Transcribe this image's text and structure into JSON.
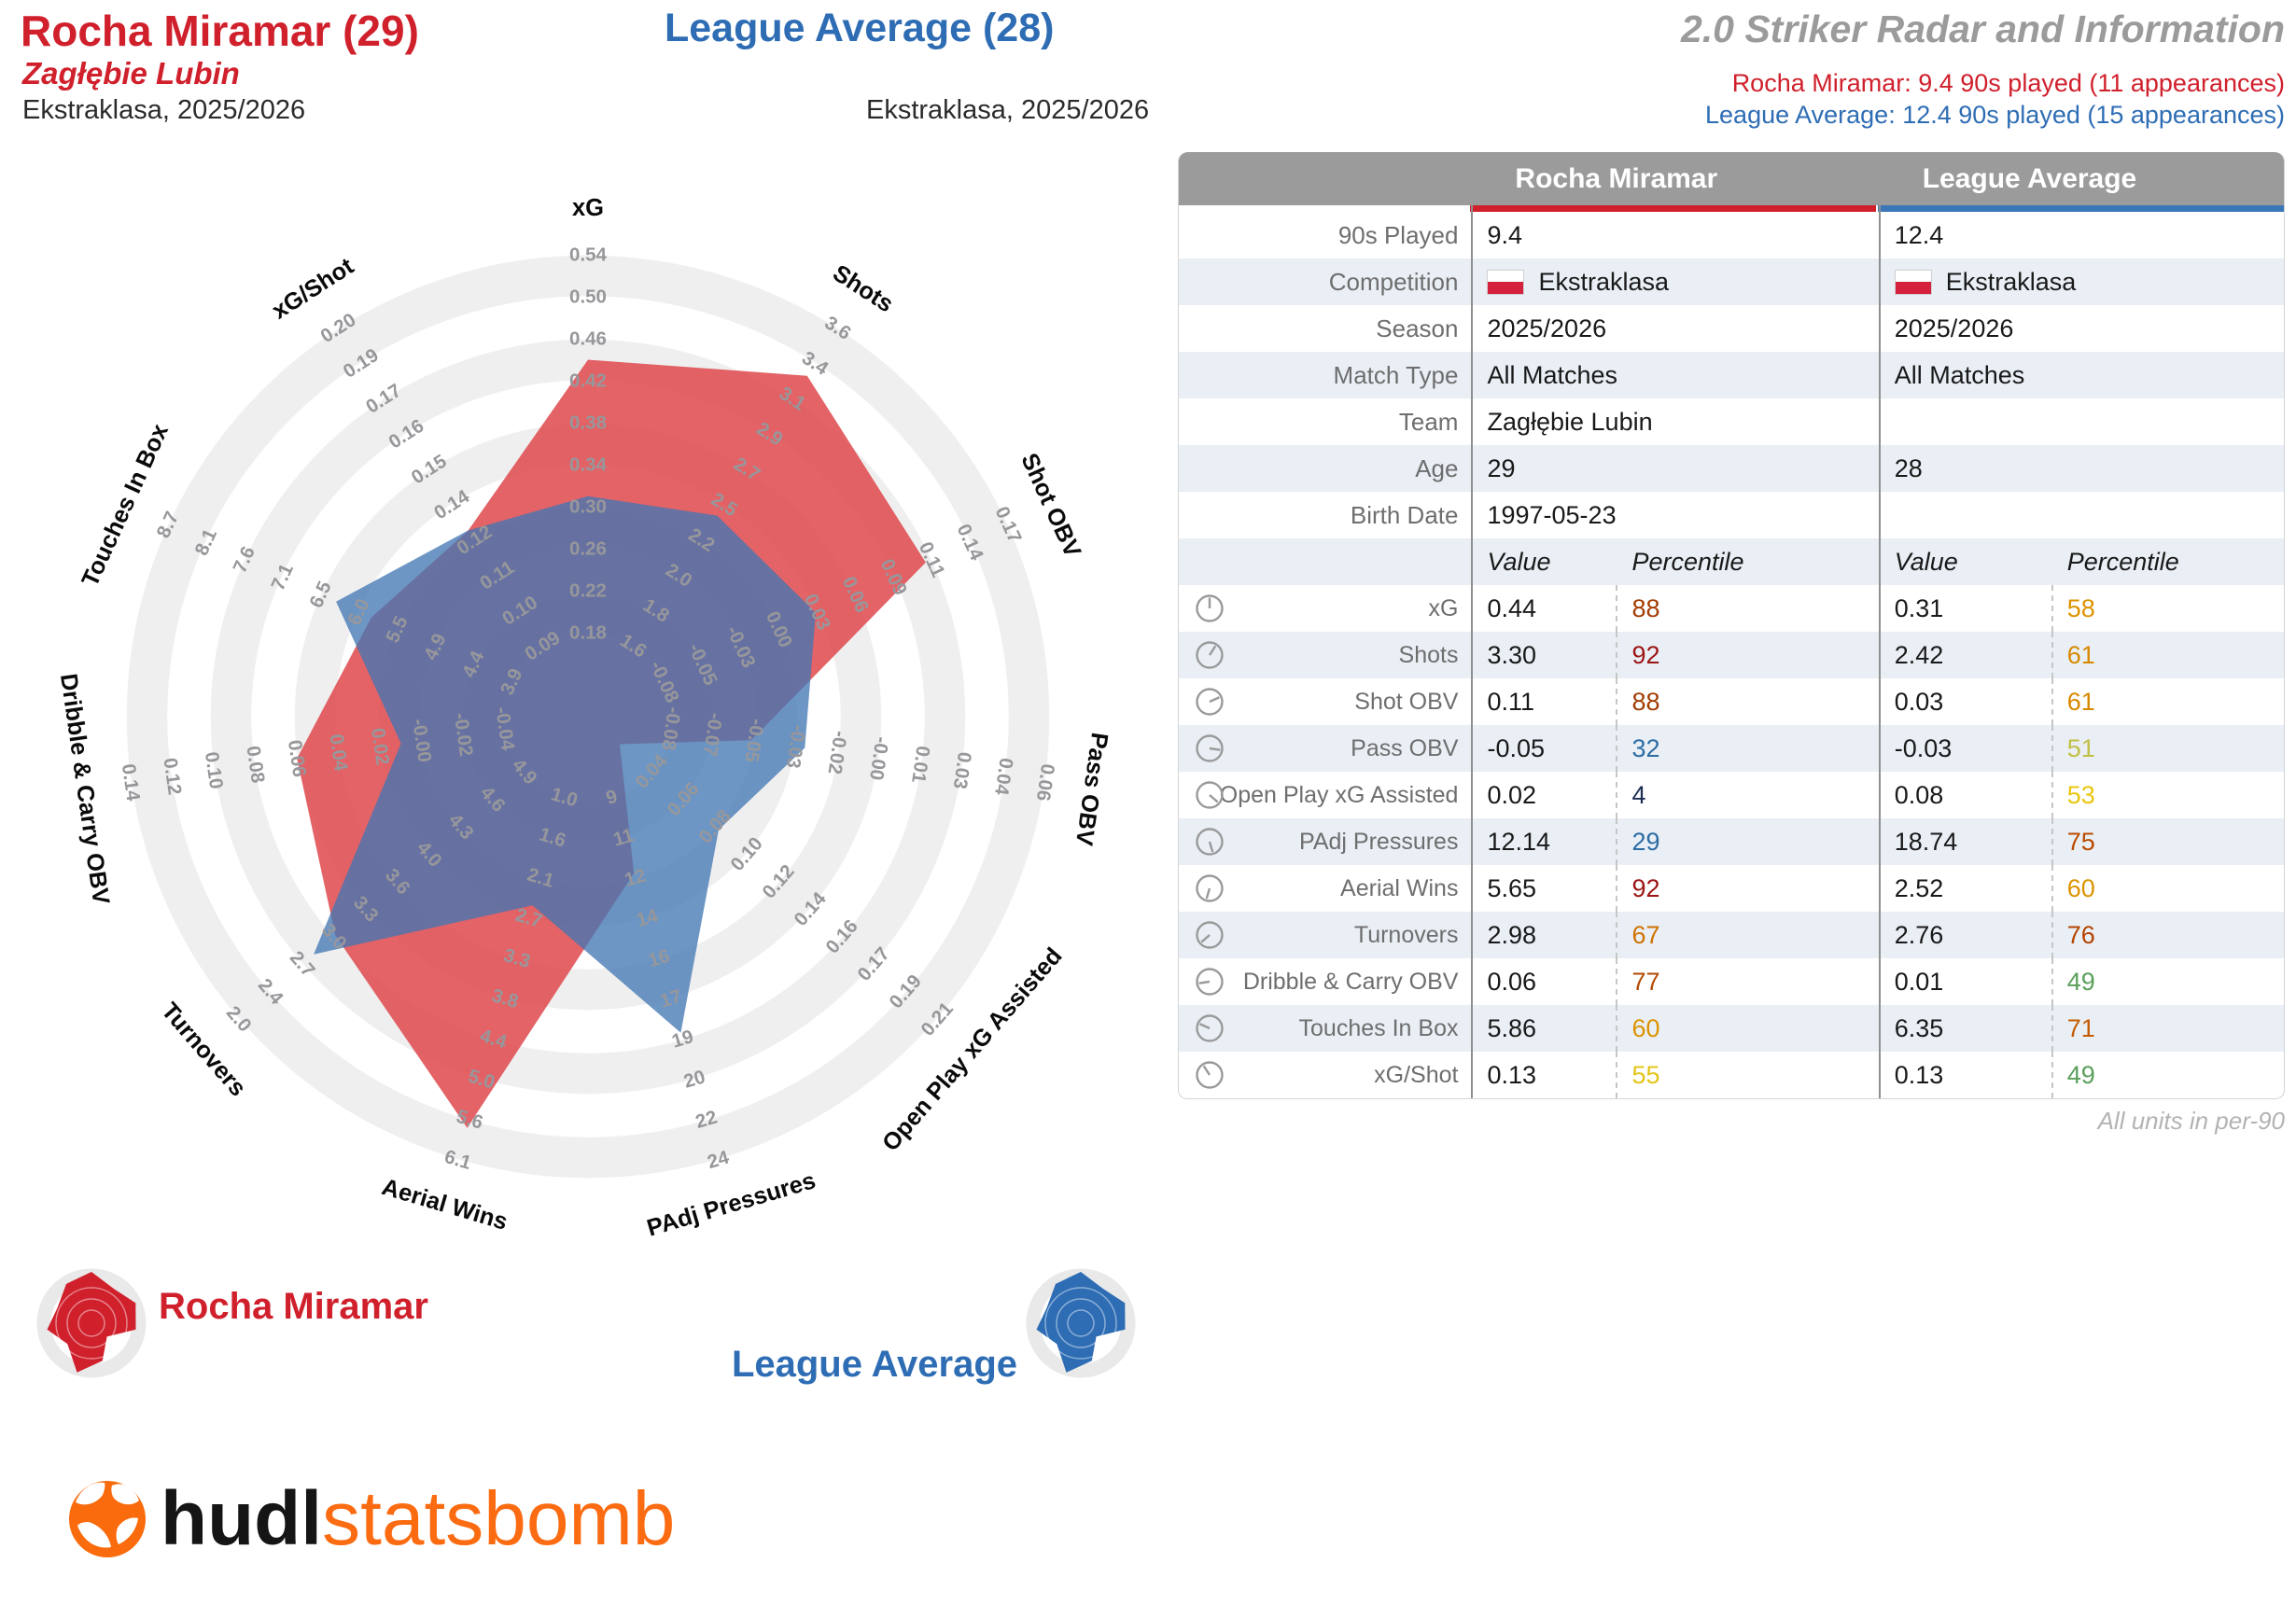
{
  "header": {
    "player_title": "Rocha Miramar (29)",
    "player_team": "Zagłębie Lubin",
    "player_competition": "Ekstraklasa, 2025/2026",
    "league_title": "League Average (28)",
    "league_competition": "Ekstraklasa, 2025/2026",
    "report_title": "2.0 Striker Radar and Information",
    "player_note": "Rocha Miramar: 9.4 90s played (11 appearances)",
    "league_note": "League Average: 12.4 90s played (15 appearances)"
  },
  "colors": {
    "player": "#d0202c",
    "league": "#2e6db4",
    "player_fill": "rgba(222,72,76,0.85)",
    "league_fill": "rgba(65,118,180,0.77)",
    "band_gray": "#efefef",
    "tick_text": "#97979b",
    "bar_red": "#d0202c",
    "bar_blue": "#3a76b8"
  },
  "table": {
    "columns": [
      "Rocha Miramar",
      "League Average"
    ],
    "info_rows": [
      {
        "label": "90s Played",
        "player": "9.4",
        "league": "12.4",
        "flag": false
      },
      {
        "label": "Competition",
        "player": "Ekstraklasa",
        "league": "Ekstraklasa",
        "flag": true
      },
      {
        "label": "Season",
        "player": "2025/2026",
        "league": "2025/2026",
        "flag": false
      },
      {
        "label": "Match Type",
        "player": "All Matches",
        "league": "All Matches",
        "flag": false
      },
      {
        "label": "Team",
        "player": "Zagłębie Lubin",
        "league": "",
        "flag": false
      },
      {
        "label": "Age",
        "player": "29",
        "league": "28",
        "flag": false
      },
      {
        "label": "Birth Date",
        "player": "1997-05-23",
        "league": "",
        "flag": false
      }
    ],
    "subheader": {
      "value": "Value",
      "percentile": "Percentile"
    },
    "footnote": "All units in per-90"
  },
  "chart_data": {
    "type": "radar",
    "axes_count": 11,
    "rings": 10,
    "series_names": [
      "Rocha Miramar",
      "League Average"
    ],
    "axes": [
      {
        "name": "xG",
        "ticks": [
          "0.18",
          "0.22",
          "0.26",
          "0.30",
          "0.34",
          "0.38",
          "0.42",
          "0.46",
          "0.50",
          "0.54"
        ],
        "player": {
          "value": "0.44",
          "percentile": "88",
          "pct_color": "#a23c03"
        },
        "league": {
          "value": "0.31",
          "percentile": "58",
          "pct_color": "#dd9300"
        }
      },
      {
        "name": "Shots",
        "ticks": [
          "1.6",
          "1.8",
          "2.0",
          "2.2",
          "2.5",
          "2.7",
          "2.9",
          "3.1",
          "3.4",
          "3.6"
        ],
        "player": {
          "value": "3.30",
          "percentile": "92",
          "pct_color": "#9c1414"
        },
        "league": {
          "value": "2.42",
          "percentile": "61",
          "pct_color": "#d88800"
        }
      },
      {
        "name": "Shot OBV",
        "ticks": [
          "-0.08",
          "-0.05",
          "-0.03",
          "0.00",
          "0.03",
          "0.06",
          "0.09",
          "0.11",
          "0.14",
          "0.17"
        ],
        "player": {
          "value": "0.11",
          "percentile": "88",
          "pct_color": "#a23c03"
        },
        "league": {
          "value": "0.03",
          "percentile": "61",
          "pct_color": "#d88800"
        }
      },
      {
        "name": "Pass OBV",
        "ticks": [
          "-0.08",
          "-0.07",
          "-0.05",
          "-0.03",
          "-0.02",
          "-0.00",
          "0.01",
          "0.03",
          "0.04",
          "0.06"
        ],
        "player": {
          "value": "-0.05",
          "percentile": "32",
          "pct_color": "#2d6ca3"
        },
        "league": {
          "value": "-0.03",
          "percentile": "51",
          "pct_color": "#c2bf43"
        }
      },
      {
        "name": "Open Play xG Assisted",
        "ticks": [
          "0.04",
          "0.06",
          "0.08",
          "0.10",
          "0.12",
          "0.14",
          "0.16",
          "0.17",
          "0.19",
          "0.21"
        ],
        "player": {
          "value": "0.02",
          "percentile": "4",
          "pct_color": "#1c2d52"
        },
        "league": {
          "value": "0.08",
          "percentile": "53",
          "pct_color": "#e9c70e"
        }
      },
      {
        "name": "PAdj Pressures",
        "ticks": [
          "9",
          "11",
          "12",
          "14",
          "16",
          "17",
          "19",
          "20",
          "22",
          "24"
        ],
        "player": {
          "value": "12.14",
          "percentile": "29",
          "pct_color": "#2d6ca3"
        },
        "league": {
          "value": "18.74",
          "percentile": "75",
          "pct_color": "#bb4a00"
        }
      },
      {
        "name": "Aerial Wins",
        "ticks": [
          "1.0",
          "1.6",
          "2.1",
          "2.7",
          "3.3",
          "3.8",
          "4.4",
          "5.0",
          "5.6",
          "6.1"
        ],
        "player": {
          "value": "5.65",
          "percentile": "92",
          "pct_color": "#9c1414"
        },
        "league": {
          "value": "2.52",
          "percentile": "60",
          "pct_color": "#dd9300"
        }
      },
      {
        "name": "Turnovers",
        "ticks": [
          "4.9",
          "4.6",
          "4.3",
          "4.0",
          "3.6",
          "3.3",
          "3.0",
          "2.7",
          "2.4",
          "2.0"
        ],
        "player": {
          "value": "2.98",
          "percentile": "67",
          "pct_color": "#d07200"
        },
        "league": {
          "value": "2.76",
          "percentile": "76",
          "pct_color": "#b54301"
        }
      },
      {
        "name": "Dribble & Carry OBV",
        "ticks": [
          "-0.04",
          "-0.02",
          "-0.00",
          "0.02",
          "0.04",
          "0.06",
          "0.08",
          "0.10",
          "0.12",
          "0.14"
        ],
        "player": {
          "value": "0.06",
          "percentile": "77",
          "pct_color": "#b24a02"
        },
        "league": {
          "value": "0.01",
          "percentile": "49",
          "pct_color": "#5ba05b"
        }
      },
      {
        "name": "Touches In Box",
        "ticks": [
          "3.9",
          "4.4",
          "4.9",
          "5.5",
          "6.0",
          "6.5",
          "7.1",
          "7.6",
          "8.1",
          "8.7"
        ],
        "player": {
          "value": "5.86",
          "percentile": "60",
          "pct_color": "#dd9300"
        },
        "league": {
          "value": "6.35",
          "percentile": "71",
          "pct_color": "#c45c00"
        }
      },
      {
        "name": "xG/Shot",
        "ticks": [
          "0.09",
          "0.10",
          "0.11",
          "0.12",
          "0.14",
          "0.15",
          "0.16",
          "0.17",
          "0.19",
          "0.20"
        ],
        "player": {
          "value": "0.13",
          "percentile": "55",
          "pct_color": "#e4c417"
        },
        "league": {
          "value": "0.13",
          "percentile": "49",
          "pct_color": "#5ba05b"
        }
      }
    ]
  },
  "legend": {
    "player_label": "Rocha Miramar",
    "league_label": "League Average"
  },
  "logo": {
    "hudl": "hudl",
    "statsbomb": "statsbomb"
  }
}
